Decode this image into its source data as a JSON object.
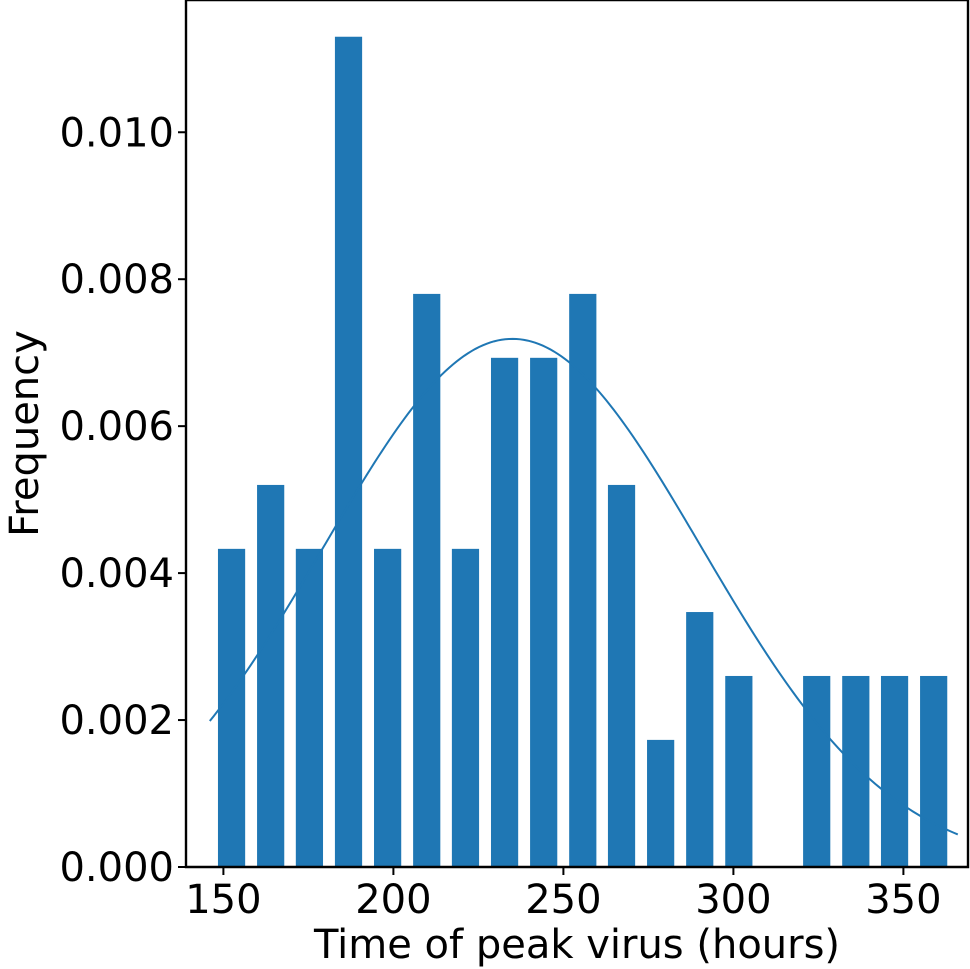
{
  "chart_data": {
    "type": "bar",
    "xlabel": "Time of peak virus (hours)",
    "ylabel": "Frequency",
    "xlim": [
      139,
      369
    ],
    "ylim": [
      0,
      0.0118
    ],
    "xticks": [
      150,
      200,
      250,
      300,
      350
    ],
    "yticks": [
      0.0,
      0.002,
      0.004,
      0.006,
      0.008,
      0.01
    ],
    "ytick_labels": [
      "0.000",
      "0.002",
      "0.004",
      "0.006",
      "0.008",
      "0.010"
    ],
    "bar_width": 8,
    "bars": [
      {
        "x": 152.4,
        "value": 0.00433
      },
      {
        "x": 163.9,
        "value": 0.0052
      },
      {
        "x": 175.3,
        "value": 0.00433
      },
      {
        "x": 186.8,
        "value": 0.0113
      },
      {
        "x": 198.3,
        "value": 0.00433
      },
      {
        "x": 209.8,
        "value": 0.0078
      },
      {
        "x": 221.2,
        "value": 0.00433
      },
      {
        "x": 232.7,
        "value": 0.00693
      },
      {
        "x": 244.2,
        "value": 0.00693
      },
      {
        "x": 255.7,
        "value": 0.0078
      },
      {
        "x": 267.1,
        "value": 0.0052
      },
      {
        "x": 278.6,
        "value": 0.00173
      },
      {
        "x": 290.1,
        "value": 0.00347
      },
      {
        "x": 301.6,
        "value": 0.0026
      },
      {
        "x": 313.0,
        "value": 0.0
      },
      {
        "x": 324.5,
        "value": 0.0026
      },
      {
        "x": 336.0,
        "value": 0.0026
      },
      {
        "x": 347.4,
        "value": 0.0026
      },
      {
        "x": 358.9,
        "value": 0.0026
      }
    ],
    "fit_curve": {
      "type": "normal",
      "mean": 235,
      "sd": 55.5,
      "x_range": [
        146,
        366
      ]
    },
    "colors": {
      "bar": "#1f77b4",
      "curve": "#1f77b4"
    },
    "grid": false,
    "legend": "none"
  }
}
